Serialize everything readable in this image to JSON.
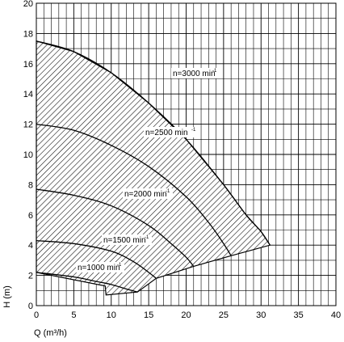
{
  "chart_data": {
    "type": "line",
    "title": "",
    "xlabel": "Q (m³/h)",
    "ylabel": "H (m)",
    "xlim": [
      0,
      40
    ],
    "ylim": [
      0,
      20
    ],
    "x_ticks": [
      0,
      5,
      10,
      15,
      20,
      25,
      30,
      35,
      40
    ],
    "y_ticks": [
      0,
      2,
      4,
      6,
      8,
      10,
      12,
      14,
      16,
      18,
      20
    ],
    "grid": true,
    "legend": "none",
    "series": [
      {
        "name": "n=3000 min",
        "label_sup": "-1",
        "color": "#000000",
        "x": [
          0,
          5,
          10,
          15,
          20,
          25,
          28,
          30,
          31.2
        ],
        "y": [
          17.5,
          16.8,
          15.4,
          13.4,
          11.0,
          8.0,
          6.0,
          4.9,
          4.0
        ]
      },
      {
        "name": "n=2500 min",
        "label_sup": "-1",
        "color": "#000000",
        "x": [
          0,
          5,
          10,
          15,
          20,
          23,
          25,
          26
        ],
        "y": [
          12.0,
          11.6,
          10.6,
          9.2,
          7.2,
          5.5,
          4.1,
          3.3
        ]
      },
      {
        "name": "n=2000 min",
        "label_sup": "-1",
        "color": "#000000",
        "x": [
          0,
          5,
          10,
          15,
          18,
          20,
          21
        ],
        "y": [
          7.7,
          7.3,
          6.6,
          5.3,
          4.1,
          3.2,
          2.6
        ]
      },
      {
        "name": "n=1500 min",
        "label_sup": "-1",
        "color": "#000000",
        "x": [
          0,
          5,
          10,
          13,
          15,
          16
        ],
        "y": [
          4.3,
          4.1,
          3.6,
          2.9,
          2.2,
          1.8
        ]
      },
      {
        "name": "n=1000 min",
        "label_sup": "-1",
        "color": "#000000",
        "x": [
          0,
          5,
          8,
          10,
          12,
          13.5
        ],
        "y": [
          2.2,
          1.9,
          1.6,
          1.4,
          1.1,
          0.9
        ]
      }
    ],
    "operating_region": {
      "fill": "hatched",
      "x": [
        0,
        5,
        10,
        15,
        20,
        25,
        28,
        30,
        31.2,
        26,
        21,
        16,
        13.5,
        9.3,
        9.2,
        0
      ],
      "y": [
        17.5,
        16.8,
        15.4,
        13.4,
        11.0,
        8.0,
        6.0,
        4.9,
        4.0,
        3.3,
        2.6,
        1.8,
        0.9,
        0.7,
        1.3,
        2.2
      ]
    }
  }
}
